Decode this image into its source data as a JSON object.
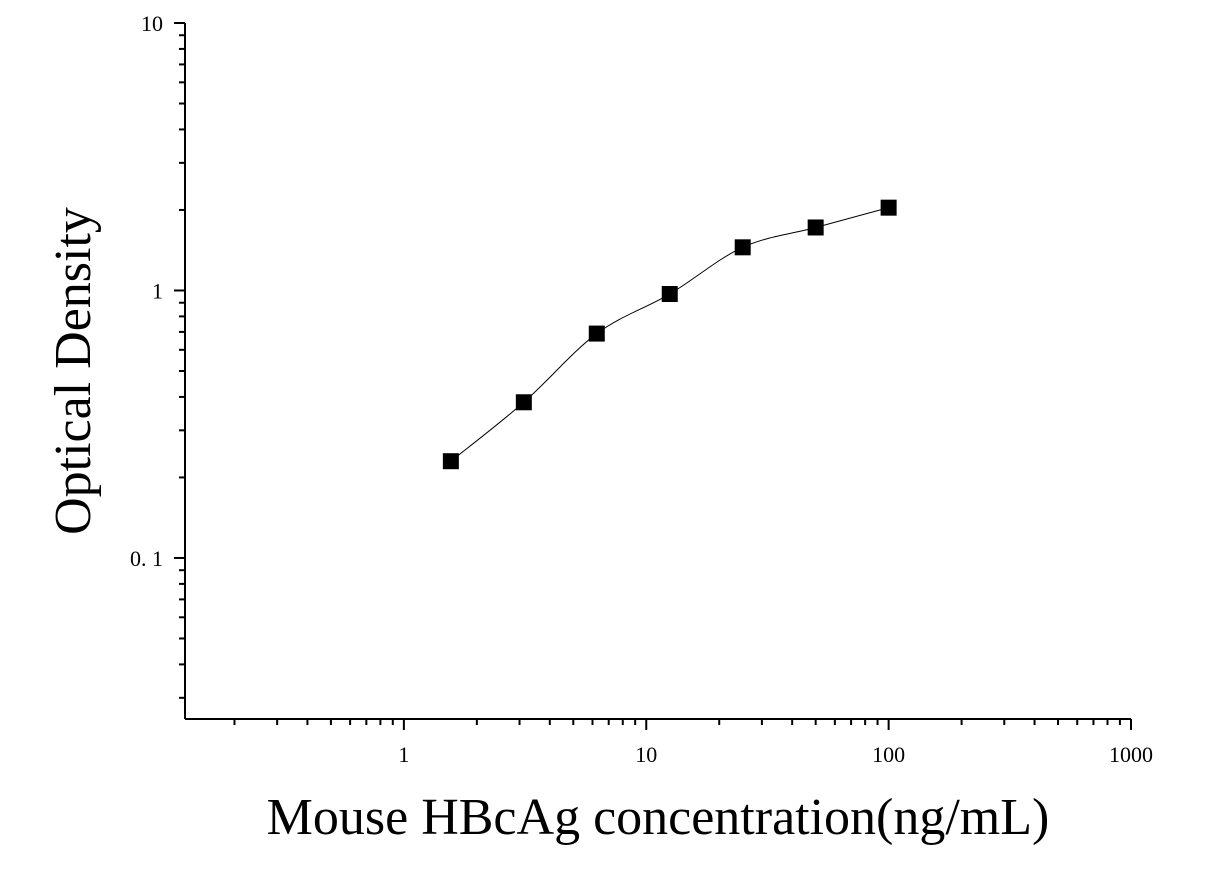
{
  "chart_data": {
    "type": "scatter",
    "xlabel": "Mouse HBcAg concentration(ng/mL)",
    "ylabel": "Optical Density",
    "xscale": "log",
    "yscale": "log",
    "xlim": [
      0.125,
      1000
    ],
    "ylim": [
      0.025,
      10
    ],
    "xticks": [
      1,
      10,
      100,
      1000
    ],
    "yticks": [
      {
        "value": 0.1,
        "label": "0. 1"
      },
      1,
      10
    ],
    "minor_ticks": true,
    "fit_curve": true,
    "series": [
      {
        "color": "#000000",
        "x": [
          1.5625,
          3.125,
          6.25,
          12.5,
          25,
          50,
          100
        ],
        "values": [
          0.23,
          0.382,
          0.69,
          0.97,
          1.45,
          1.72,
          2.04
        ]
      }
    ]
  }
}
